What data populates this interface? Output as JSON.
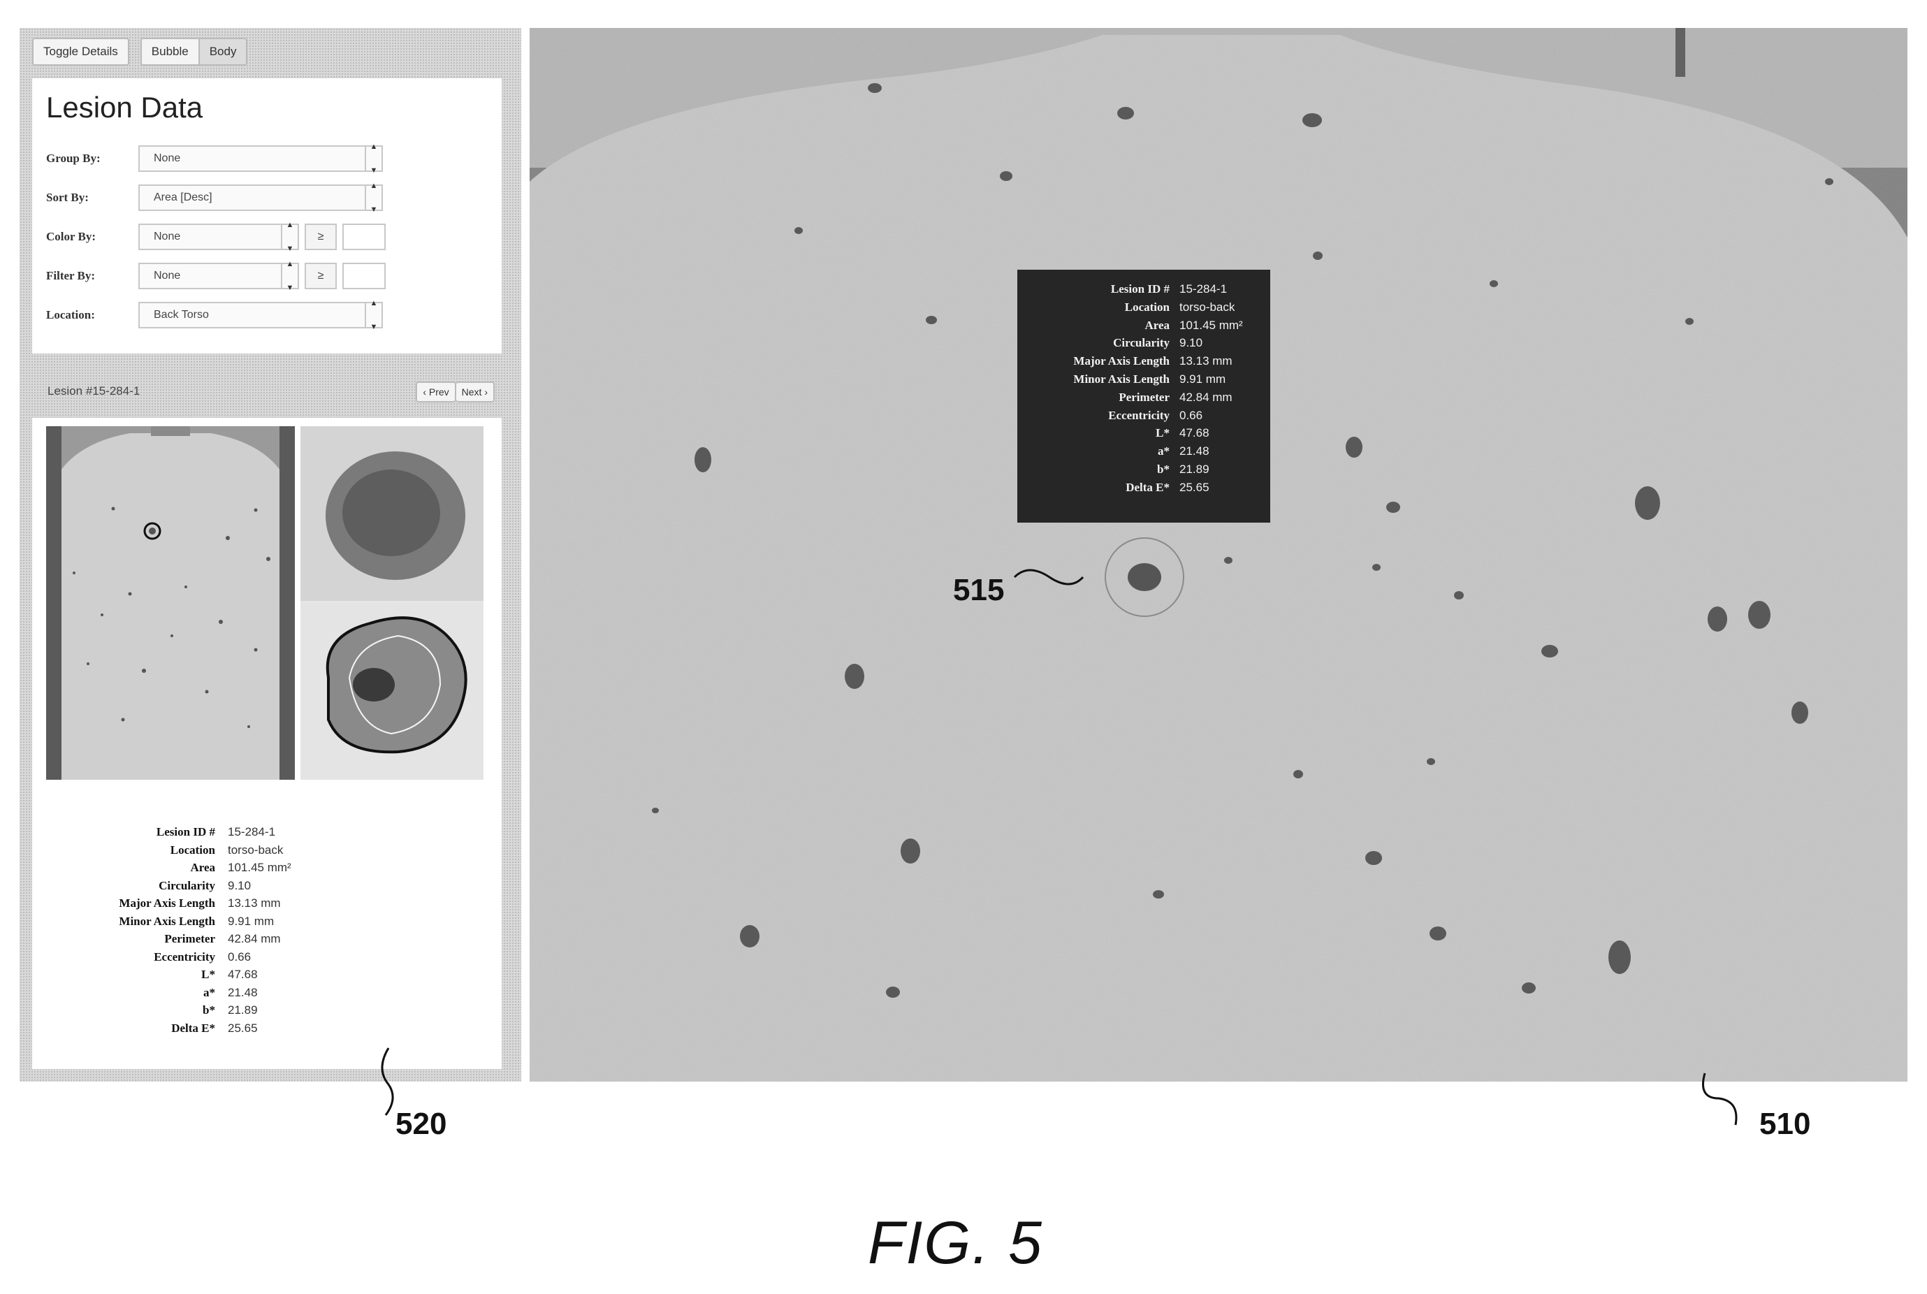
{
  "toolbar": {
    "toggle_details": "Toggle Details",
    "view_bubble": "Bubble",
    "view_body": "Body"
  },
  "lesion_data": {
    "title": "Lesion Data",
    "group_by": {
      "label": "Group By:",
      "value": "None"
    },
    "sort_by": {
      "label": "Sort By:",
      "value": "Area [Desc]"
    },
    "color_by": {
      "label": "Color By:",
      "value": "None",
      "operator": "≥"
    },
    "filter_by": {
      "label": "Filter By:",
      "value": "None",
      "operator": "≥"
    },
    "location": {
      "label": "Location:",
      "value": "Back Torso"
    }
  },
  "lesion_detail": {
    "title": "Lesion #15-284-1",
    "prev_label": "‹ Prev",
    "next_label": "Next ›"
  },
  "metrics": [
    {
      "label": "Lesion ID #",
      "value": "15-284-1"
    },
    {
      "label": "Location",
      "value": "torso-back"
    },
    {
      "label": "Area",
      "value": "101.45 mm²"
    },
    {
      "label": "Circularity",
      "value": "9.10"
    },
    {
      "label": "Major Axis Length",
      "value": "13.13 mm"
    },
    {
      "label": "Minor Axis Length",
      "value": "9.91 mm"
    },
    {
      "label": "Perimeter",
      "value": "42.84 mm"
    },
    {
      "label": "Eccentricity",
      "value": "0.66"
    },
    {
      "label": "L*",
      "value": "47.68"
    },
    {
      "label": "a*",
      "value": "21.48"
    },
    {
      "label": "b*",
      "value": "21.89"
    },
    {
      "label": "Delta E*",
      "value": "25.65"
    }
  ],
  "refs": {
    "r515": "515",
    "r520": "520",
    "r510": "510"
  },
  "figure_caption": "FIG. 5"
}
